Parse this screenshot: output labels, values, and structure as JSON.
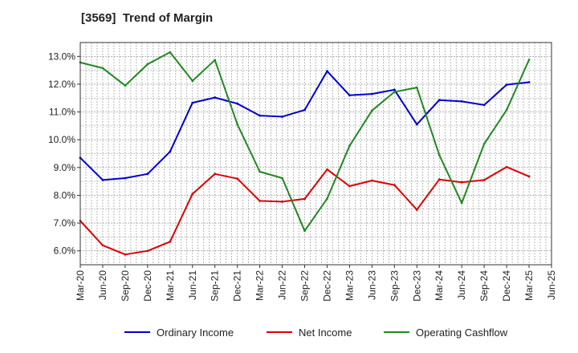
{
  "chart_data": {
    "type": "line",
    "title": "[3569]  Trend of Margin",
    "xlabel": "",
    "ylabel": "",
    "categories": [
      "Mar-20",
      "Jun-20",
      "Sep-20",
      "Dec-20",
      "Mar-21",
      "Jun-21",
      "Sep-21",
      "Dec-21",
      "Mar-22",
      "Jun-22",
      "Sep-22",
      "Dec-22",
      "Mar-23",
      "Jun-23",
      "Sep-23",
      "Dec-23",
      "Mar-24",
      "Jun-24",
      "Sep-24",
      "Dec-24",
      "Mar-25",
      "Jun-25"
    ],
    "ylim": [
      5.5,
      13.5
    ],
    "yticks": [
      6.0,
      7.0,
      8.0,
      9.0,
      10.0,
      11.0,
      12.0,
      13.0
    ],
    "ytick_labels": [
      "6.0%",
      "7.0%",
      "8.0%",
      "9.0%",
      "10.0%",
      "11.0%",
      "12.0%",
      "13.0%"
    ],
    "grid": true,
    "legend_position": "bottom",
    "series": [
      {
        "name": "Ordinary Income",
        "color": "#0000cc",
        "values": [
          9.35,
          8.55,
          8.62,
          8.77,
          9.57,
          11.33,
          11.52,
          11.3,
          10.87,
          10.83,
          11.07,
          12.47,
          11.6,
          11.65,
          11.8,
          10.55,
          11.43,
          11.38,
          11.25,
          11.98,
          12.07,
          null
        ]
      },
      {
        "name": "Net Income",
        "color": "#dd0000",
        "values": [
          7.08,
          6.2,
          5.87,
          6.0,
          6.33,
          8.05,
          8.77,
          8.6,
          7.8,
          7.77,
          7.87,
          8.93,
          8.33,
          8.53,
          8.37,
          7.48,
          8.57,
          8.47,
          8.55,
          9.02,
          8.68,
          null
        ]
      },
      {
        "name": "Operating Cashflow",
        "color": "#228822",
        "values": [
          12.78,
          12.58,
          11.95,
          12.72,
          13.15,
          12.12,
          12.87,
          10.55,
          8.85,
          8.62,
          6.72,
          7.88,
          9.78,
          11.05,
          11.72,
          11.88,
          9.45,
          7.72,
          9.85,
          11.07,
          12.88,
          null
        ]
      }
    ]
  }
}
